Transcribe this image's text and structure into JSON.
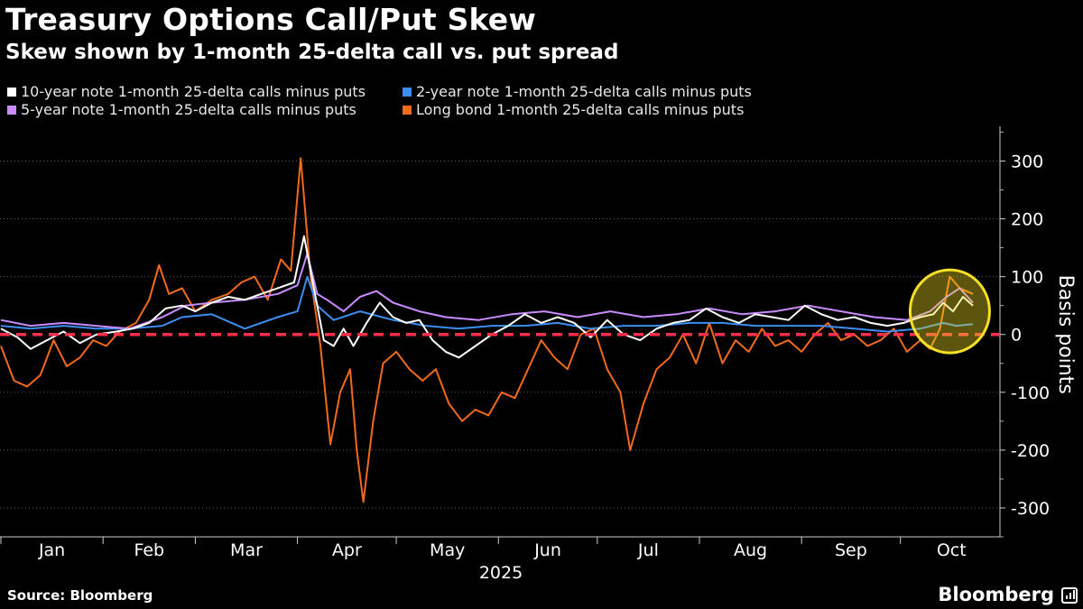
{
  "title": "Treasury Options Call/Put Skew",
  "subtitle": "Skew shown by 1-month 25-delta call vs. put spread",
  "legend": [
    {
      "label": "10-year note 1-month 25-delta calls minus puts",
      "color": "#ffffff"
    },
    {
      "label": "2-year note 1-month 25-delta calls minus puts",
      "color": "#3b8ef0"
    },
    {
      "label": "5-year note 1-month 25-delta calls minus puts",
      "color": "#c98cff"
    },
    {
      "label": "Long bond 1-month 25-delta calls minus puts",
      "color": "#f26a1b"
    }
  ],
  "source": "Source: Bloomberg",
  "brand": "Bloomberg",
  "chart_data": {
    "type": "line",
    "title": "Treasury Options Call/Put Skew",
    "subtitle": "Skew shown by 1-month 25-delta call vs. put spread",
    "xlabel": "2025",
    "ylabel": "Basis points",
    "x_ticks": [
      "Jan",
      "Feb",
      "Mar",
      "Apr",
      "May",
      "Jun",
      "Jul",
      "Aug",
      "Sep",
      "Oct"
    ],
    "y_ticks": [
      300,
      200,
      100,
      0,
      -100,
      -200,
      -300
    ],
    "y_tick_labels": [
      "300",
      "200",
      "100",
      "0",
      "-100",
      "-200",
      "-300"
    ],
    "ylim": [
      -350,
      360
    ],
    "x_domain": [
      "2025-01-01",
      "2025-10-23"
    ],
    "grid": "horizontal dotted",
    "y_axis_position": "right",
    "zero_line": {
      "value": 0,
      "color": "#ff2e4c",
      "style": "dashed"
    },
    "highlight": {
      "shape": "circle",
      "color": "#f5e023",
      "around": "Oct"
    },
    "series": [
      {
        "name": "10-year note 1-month 25-delta calls minus puts",
        "color": "#ffffff",
        "points": [
          [
            "2025-01-01",
            10
          ],
          [
            "2025-01-06",
            -5
          ],
          [
            "2025-01-10",
            -25
          ],
          [
            "2025-01-15",
            -10
          ],
          [
            "2025-01-20",
            5
          ],
          [
            "2025-01-25",
            -15
          ],
          [
            "2025-01-30",
            0
          ],
          [
            "2025-02-05",
            5
          ],
          [
            "2025-02-10",
            10
          ],
          [
            "2025-02-15",
            20
          ],
          [
            "2025-02-20",
            45
          ],
          [
            "2025-02-25",
            50
          ],
          [
            "2025-03-01",
            40
          ],
          [
            "2025-03-06",
            55
          ],
          [
            "2025-03-11",
            65
          ],
          [
            "2025-03-16",
            60
          ],
          [
            "2025-03-21",
            70
          ],
          [
            "2025-03-26",
            80
          ],
          [
            "2025-03-31",
            90
          ],
          [
            "2025-04-03",
            170
          ],
          [
            "2025-04-06",
            80
          ],
          [
            "2025-04-09",
            -10
          ],
          [
            "2025-04-12",
            -20
          ],
          [
            "2025-04-15",
            10
          ],
          [
            "2025-04-18",
            -20
          ],
          [
            "2025-04-22",
            20
          ],
          [
            "2025-04-26",
            55
          ],
          [
            "2025-04-30",
            30
          ],
          [
            "2025-05-04",
            20
          ],
          [
            "2025-05-08",
            25
          ],
          [
            "2025-05-12",
            -10
          ],
          [
            "2025-05-16",
            -30
          ],
          [
            "2025-05-20",
            -40
          ],
          [
            "2025-05-25",
            -20
          ],
          [
            "2025-05-30",
            0
          ],
          [
            "2025-06-04",
            15
          ],
          [
            "2025-06-09",
            35
          ],
          [
            "2025-06-14",
            20
          ],
          [
            "2025-06-19",
            30
          ],
          [
            "2025-06-24",
            20
          ],
          [
            "2025-06-29",
            -5
          ],
          [
            "2025-07-04",
            25
          ],
          [
            "2025-07-09",
            0
          ],
          [
            "2025-07-14",
            -10
          ],
          [
            "2025-07-19",
            10
          ],
          [
            "2025-07-24",
            20
          ],
          [
            "2025-07-29",
            25
          ],
          [
            "2025-08-03",
            45
          ],
          [
            "2025-08-08",
            30
          ],
          [
            "2025-08-13",
            20
          ],
          [
            "2025-08-18",
            35
          ],
          [
            "2025-08-23",
            30
          ],
          [
            "2025-08-28",
            25
          ],
          [
            "2025-09-02",
            50
          ],
          [
            "2025-09-07",
            35
          ],
          [
            "2025-09-12",
            25
          ],
          [
            "2025-09-17",
            30
          ],
          [
            "2025-09-22",
            20
          ],
          [
            "2025-09-27",
            15
          ],
          [
            "2025-10-02",
            20
          ],
          [
            "2025-10-07",
            30
          ],
          [
            "2025-10-11",
            35
          ],
          [
            "2025-10-14",
            55
          ],
          [
            "2025-10-17",
            40
          ],
          [
            "2025-10-20",
            65
          ],
          [
            "2025-10-23",
            50
          ]
        ]
      },
      {
        "name": "2-year note 1-month 25-delta calls minus puts",
        "color": "#3b8ef0",
        "points": [
          [
            "2025-01-01",
            15
          ],
          [
            "2025-01-10",
            10
          ],
          [
            "2025-01-20",
            15
          ],
          [
            "2025-01-30",
            10
          ],
          [
            "2025-02-09",
            10
          ],
          [
            "2025-02-19",
            15
          ],
          [
            "2025-02-25",
            30
          ],
          [
            "2025-03-06",
            35
          ],
          [
            "2025-03-16",
            10
          ],
          [
            "2025-03-26",
            30
          ],
          [
            "2025-04-01",
            40
          ],
          [
            "2025-04-04",
            100
          ],
          [
            "2025-04-07",
            50
          ],
          [
            "2025-04-12",
            25
          ],
          [
            "2025-04-20",
            40
          ],
          [
            "2025-04-30",
            25
          ],
          [
            "2025-05-10",
            15
          ],
          [
            "2025-05-20",
            10
          ],
          [
            "2025-05-30",
            15
          ],
          [
            "2025-06-09",
            15
          ],
          [
            "2025-06-19",
            20
          ],
          [
            "2025-06-29",
            10
          ],
          [
            "2025-07-09",
            15
          ],
          [
            "2025-07-19",
            15
          ],
          [
            "2025-07-29",
            20
          ],
          [
            "2025-08-08",
            20
          ],
          [
            "2025-08-18",
            15
          ],
          [
            "2025-08-28",
            15
          ],
          [
            "2025-09-07",
            15
          ],
          [
            "2025-09-17",
            10
          ],
          [
            "2025-09-27",
            5
          ],
          [
            "2025-10-07",
            10
          ],
          [
            "2025-10-14",
            20
          ],
          [
            "2025-10-18",
            15
          ],
          [
            "2025-10-23",
            18
          ]
        ]
      },
      {
        "name": "5-year note 1-month 25-delta calls minus puts",
        "color": "#c98cff",
        "points": [
          [
            "2025-01-01",
            25
          ],
          [
            "2025-01-10",
            15
          ],
          [
            "2025-01-20",
            20
          ],
          [
            "2025-01-30",
            15
          ],
          [
            "2025-02-09",
            10
          ],
          [
            "2025-02-19",
            30
          ],
          [
            "2025-02-26",
            50
          ],
          [
            "2025-03-06",
            55
          ],
          [
            "2025-03-16",
            60
          ],
          [
            "2025-03-26",
            70
          ],
          [
            "2025-04-01",
            85
          ],
          [
            "2025-04-04",
            140
          ],
          [
            "2025-04-07",
            70
          ],
          [
            "2025-04-10",
            60
          ],
          [
            "2025-04-15",
            40
          ],
          [
            "2025-04-20",
            65
          ],
          [
            "2025-04-25",
            75
          ],
          [
            "2025-04-30",
            55
          ],
          [
            "2025-05-08",
            40
          ],
          [
            "2025-05-16",
            30
          ],
          [
            "2025-05-26",
            25
          ],
          [
            "2025-06-05",
            35
          ],
          [
            "2025-06-15",
            40
          ],
          [
            "2025-06-25",
            30
          ],
          [
            "2025-07-05",
            40
          ],
          [
            "2025-07-15",
            30
          ],
          [
            "2025-07-25",
            35
          ],
          [
            "2025-08-04",
            45
          ],
          [
            "2025-08-14",
            35
          ],
          [
            "2025-08-24",
            40
          ],
          [
            "2025-09-03",
            50
          ],
          [
            "2025-09-13",
            40
          ],
          [
            "2025-09-23",
            30
          ],
          [
            "2025-10-03",
            25
          ],
          [
            "2025-10-10",
            40
          ],
          [
            "2025-10-15",
            65
          ],
          [
            "2025-10-19",
            80
          ],
          [
            "2025-10-23",
            55
          ]
        ]
      },
      {
        "name": "Long bond 1-month 25-delta calls minus puts",
        "color": "#f26a1b",
        "points": [
          [
            "2025-01-01",
            -20
          ],
          [
            "2025-01-05",
            -80
          ],
          [
            "2025-01-09",
            -90
          ],
          [
            "2025-01-13",
            -70
          ],
          [
            "2025-01-17",
            -10
          ],
          [
            "2025-01-21",
            -55
          ],
          [
            "2025-01-25",
            -40
          ],
          [
            "2025-01-29",
            -10
          ],
          [
            "2025-02-02",
            -20
          ],
          [
            "2025-02-06",
            5
          ],
          [
            "2025-02-11",
            20
          ],
          [
            "2025-02-15",
            60
          ],
          [
            "2025-02-18",
            120
          ],
          [
            "2025-02-21",
            70
          ],
          [
            "2025-02-25",
            80
          ],
          [
            "2025-03-01",
            40
          ],
          [
            "2025-03-06",
            60
          ],
          [
            "2025-03-11",
            70
          ],
          [
            "2025-03-15",
            90
          ],
          [
            "2025-03-19",
            100
          ],
          [
            "2025-03-23",
            60
          ],
          [
            "2025-03-27",
            130
          ],
          [
            "2025-03-30",
            110
          ],
          [
            "2025-04-02",
            305
          ],
          [
            "2025-04-05",
            100
          ],
          [
            "2025-04-08",
            -20
          ],
          [
            "2025-04-11",
            -190
          ],
          [
            "2025-04-14",
            -100
          ],
          [
            "2025-04-17",
            -60
          ],
          [
            "2025-04-19",
            -200
          ],
          [
            "2025-04-21",
            -290
          ],
          [
            "2025-04-24",
            -150
          ],
          [
            "2025-04-27",
            -50
          ],
          [
            "2025-05-01",
            -30
          ],
          [
            "2025-05-05",
            -60
          ],
          [
            "2025-05-09",
            -80
          ],
          [
            "2025-05-13",
            -60
          ],
          [
            "2025-05-17",
            -120
          ],
          [
            "2025-05-21",
            -150
          ],
          [
            "2025-05-25",
            -130
          ],
          [
            "2025-05-29",
            -140
          ],
          [
            "2025-06-02",
            -100
          ],
          [
            "2025-06-06",
            -110
          ],
          [
            "2025-06-10",
            -60
          ],
          [
            "2025-06-14",
            -10
          ],
          [
            "2025-06-18",
            -40
          ],
          [
            "2025-06-22",
            -60
          ],
          [
            "2025-06-26",
            0
          ],
          [
            "2025-06-30",
            10
          ],
          [
            "2025-07-04",
            -60
          ],
          [
            "2025-07-08",
            -100
          ],
          [
            "2025-07-11",
            -200
          ],
          [
            "2025-07-15",
            -120
          ],
          [
            "2025-07-19",
            -60
          ],
          [
            "2025-07-23",
            -40
          ],
          [
            "2025-07-27",
            0
          ],
          [
            "2025-07-31",
            -50
          ],
          [
            "2025-08-04",
            20
          ],
          [
            "2025-08-08",
            -50
          ],
          [
            "2025-08-12",
            -10
          ],
          [
            "2025-08-16",
            -30
          ],
          [
            "2025-08-20",
            10
          ],
          [
            "2025-08-24",
            -20
          ],
          [
            "2025-08-28",
            -10
          ],
          [
            "2025-09-01",
            -30
          ],
          [
            "2025-09-05",
            0
          ],
          [
            "2025-09-09",
            20
          ],
          [
            "2025-09-13",
            -10
          ],
          [
            "2025-09-17",
            0
          ],
          [
            "2025-09-21",
            -20
          ],
          [
            "2025-09-25",
            -10
          ],
          [
            "2025-09-29",
            10
          ],
          [
            "2025-10-03",
            -30
          ],
          [
            "2025-10-07",
            -10
          ],
          [
            "2025-10-10",
            -25
          ],
          [
            "2025-10-13",
            10
          ],
          [
            "2025-10-16",
            100
          ],
          [
            "2025-10-19",
            80
          ],
          [
            "2025-10-23",
            70
          ]
        ]
      }
    ]
  }
}
